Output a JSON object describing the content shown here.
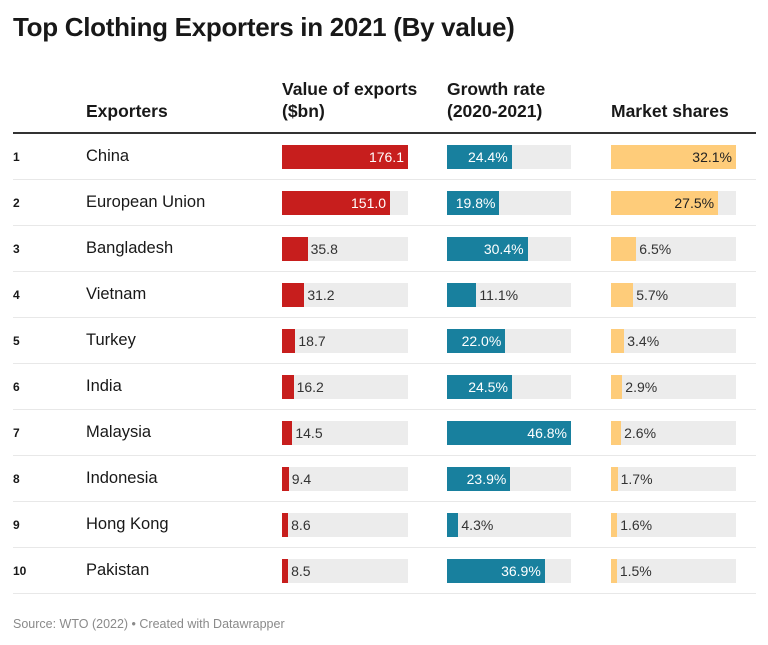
{
  "title": "Top Clothing Exporters in 2021 (By value)",
  "headers": {
    "exporters": "Exporters",
    "value": "Value of exports ($bn)",
    "growth": "Growth rate (2020-2021)",
    "share": "Market shares"
  },
  "source": "Source: WTO (2022) • Created with Datawrapper",
  "colors": {
    "value": "#c71e1d",
    "growth": "#18809e",
    "share": "#fecc7a",
    "track": "#ececec"
  },
  "chart_data": {
    "type": "table",
    "title": "Top Clothing Exporters in 2021 (By value)",
    "columns": [
      "",
      "Exporters",
      "Value of exports ($bn)",
      "Growth rate (2020-2021)",
      "Market shares"
    ],
    "rows": [
      {
        "rank": "1",
        "name": "China",
        "value": 176.1,
        "value_label": "176.1",
        "growth": 24.4,
        "growth_label": "24.4%",
        "share": 32.1,
        "share_label": "32.1%"
      },
      {
        "rank": "2",
        "name": "European Union",
        "value": 151.0,
        "value_label": "151.0",
        "growth": 19.8,
        "growth_label": "19.8%",
        "share": 27.5,
        "share_label": "27.5%"
      },
      {
        "rank": "3",
        "name": "Bangladesh",
        "value": 35.8,
        "value_label": "35.8",
        "growth": 30.4,
        "growth_label": "30.4%",
        "share": 6.5,
        "share_label": "6.5%"
      },
      {
        "rank": "4",
        "name": "Vietnam",
        "value": 31.2,
        "value_label": "31.2",
        "growth": 11.1,
        "growth_label": "11.1%",
        "share": 5.7,
        "share_label": "5.7%"
      },
      {
        "rank": "5",
        "name": "Turkey",
        "value": 18.7,
        "value_label": "18.7",
        "growth": 22.0,
        "growth_label": "22.0%",
        "share": 3.4,
        "share_label": "3.4%"
      },
      {
        "rank": "6",
        "name": "India",
        "value": 16.2,
        "value_label": "16.2",
        "growth": 24.5,
        "growth_label": "24.5%",
        "share": 2.9,
        "share_label": "2.9%"
      },
      {
        "rank": "7",
        "name": "Malaysia",
        "value": 14.5,
        "value_label": "14.5",
        "growth": 46.8,
        "growth_label": "46.8%",
        "share": 2.6,
        "share_label": "2.6%"
      },
      {
        "rank": "8",
        "name": "Indonesia",
        "value": 9.4,
        "value_label": "9.4",
        "growth": 23.9,
        "growth_label": "23.9%",
        "share": 1.7,
        "share_label": "1.7%"
      },
      {
        "rank": "9",
        "name": "Hong Kong",
        "value": 8.6,
        "value_label": "8.6",
        "growth": 4.3,
        "growth_label": "4.3%",
        "share": 1.6,
        "share_label": "1.6%"
      },
      {
        "rank": "10",
        "name": "Pakistan",
        "value": 8.5,
        "value_label": "8.5",
        "growth": 36.9,
        "growth_label": "36.9%",
        "share": 1.5,
        "share_label": "1.5%"
      }
    ]
  }
}
